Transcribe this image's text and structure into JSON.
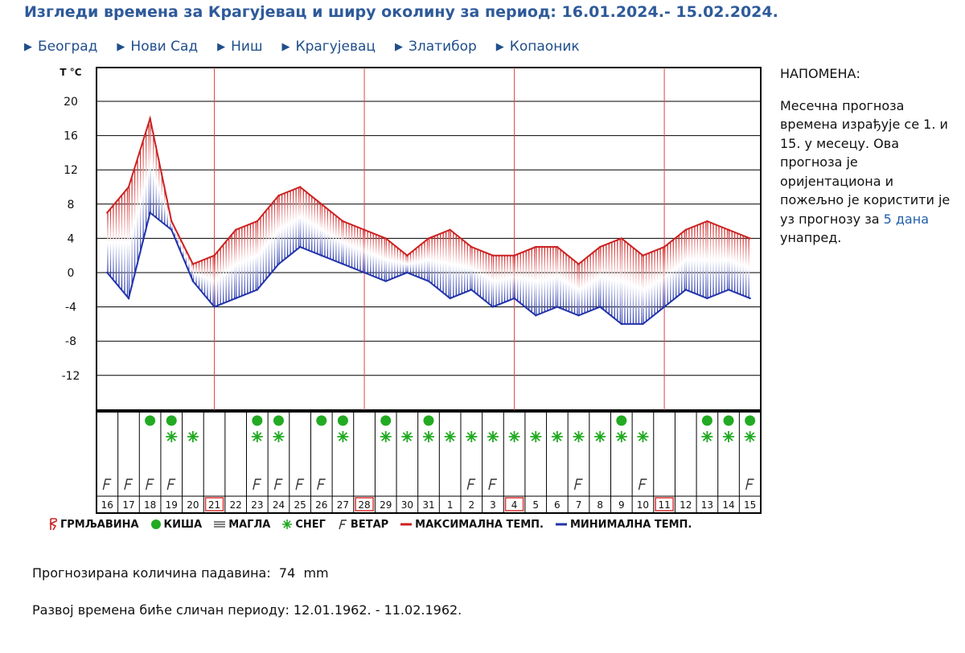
{
  "title": "Изгледи времена за Крагујевац и ширу околину за период: 16.01.2024.- 15.02.2024.",
  "nav": [
    "Београд",
    "Нови Сад",
    "Ниш",
    "Крагујевац",
    "Златибор",
    "Копаоник"
  ],
  "note": {
    "heading": "НАПОМЕНА:",
    "text": "Месечна прогноза времена израђује се 1. и 15. у месецу. Ова прогноза је оријентациона и пожељно је користити је уз прогнозу за",
    "link": "5 дана",
    "text_end": "унапред."
  },
  "legend": {
    "thunder": "ГРМЉАВИНА",
    "rain": "КИША",
    "fog": "МАГЛА",
    "snow": "СНЕГ",
    "wind": "ВЕТАР",
    "max": "МАКСИМАЛНА ТЕМП.",
    "min": "МИНИМАЛНА ТЕМП."
  },
  "footer": {
    "precip_label": "Прогнозирана количина падавина:",
    "precip_value": "74",
    "precip_unit": "mm",
    "similar_label": "Развој времена биће сличан периоду:",
    "similar_period": "12.01.1962. - 11.02.1962."
  },
  "colors": {
    "max": "#cc2222",
    "min": "#2233aa",
    "accent": "#2e5a9a",
    "rain": "#22aa22",
    "snow": "#22aa22",
    "highlight_box": "#dd3333"
  },
  "chart_data": {
    "type": "line",
    "ylabel": "T °C",
    "ylim": [
      -16,
      24
    ],
    "yticks": [
      20,
      16,
      12,
      8,
      4,
      0,
      -4,
      -8,
      -12
    ],
    "categories": [
      "16",
      "17",
      "18",
      "19",
      "20",
      "21",
      "22",
      "23",
      "24",
      "25",
      "26",
      "27",
      "28",
      "29",
      "30",
      "31",
      "1",
      "2",
      "3",
      "4",
      "5",
      "6",
      "7",
      "8",
      "9",
      "10",
      "11",
      "12",
      "13",
      "14",
      "15"
    ],
    "highlighted_days": [
      "21",
      "28",
      "4",
      "11"
    ],
    "series": [
      {
        "name": "МАКСИМАЛНА ТЕМП.",
        "values": [
          7,
          10,
          18,
          6,
          1,
          2,
          5,
          6,
          9,
          10,
          8,
          6,
          5,
          4,
          2,
          4,
          5,
          3,
          2,
          2,
          3,
          3,
          1,
          3,
          4,
          2,
          3,
          5,
          6,
          5,
          4
        ]
      },
      {
        "name": "МИНИМАЛНА ТЕМП.",
        "values": [
          0,
          -3,
          7,
          5,
          -1,
          -4,
          -3,
          -2,
          1,
          3,
          2,
          1,
          0,
          -1,
          0,
          -1,
          -3,
          -2,
          -4,
          -3,
          -5,
          -4,
          -5,
          -4,
          -6,
          -6,
          -4,
          -2,
          -3,
          -2,
          -3
        ]
      }
    ],
    "rain_days": [
      "18",
      "19",
      "23",
      "24",
      "26",
      "27",
      "29",
      "31",
      "9",
      "13",
      "14",
      "15"
    ],
    "snow_days": [
      "19",
      "20",
      "23",
      "24",
      "27",
      "29",
      "30",
      "31",
      "1",
      "2",
      "3",
      "4",
      "5",
      "6",
      "7",
      "8",
      "9",
      "10",
      "13",
      "14",
      "15"
    ],
    "wind_days": [
      "16",
      "17",
      "18",
      "19",
      "23",
      "24",
      "25",
      "26",
      "2",
      "3",
      "7",
      "10",
      "15"
    ]
  }
}
